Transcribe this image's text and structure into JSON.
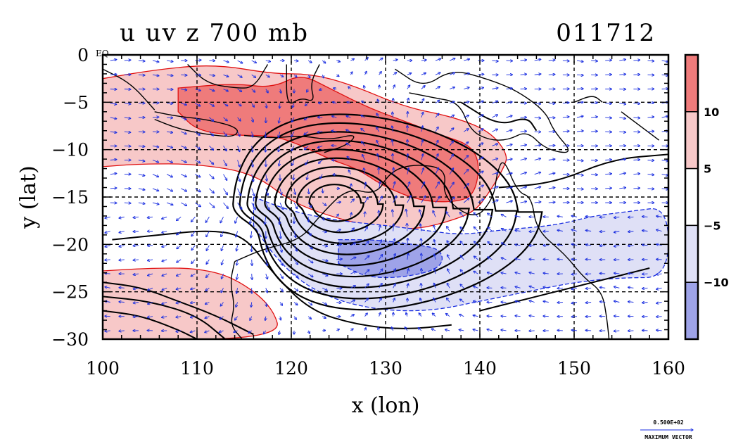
{
  "header": {
    "title": "u uv z 700 mb",
    "timestamp": "011712"
  },
  "footer": {
    "ref_vector_value": "0.500E+02",
    "ref_vector_label": "MAXIMUM VECTOR"
  },
  "colors": {
    "positive_light": "#f7c8c8",
    "positive_dark": "#ef7b7b",
    "negative_light": "#dfe0f6",
    "negative_dark": "#9ea3e8",
    "vector": "#1a2ee0",
    "positive_contour": "#e01010",
    "negative_contour": "#1a2ee0",
    "geopotential_contour": "#000000"
  },
  "chart_data": {
    "type": "heatmap",
    "title": "u uv z 700 mb",
    "time_label": "011712",
    "xlabel": "x (lon)",
    "ylabel": "y (lat)",
    "xlim": [
      100,
      160
    ],
    "ylim": [
      -30,
      0
    ],
    "x_ticks": [
      100,
      110,
      120,
      130,
      140,
      150,
      160
    ],
    "x_tick_labels": [
      "100",
      "110",
      "120",
      "130",
      "140",
      "150",
      "160"
    ],
    "y_ticks": [
      0,
      -5,
      -10,
      -15,
      -20,
      -25,
      -30
    ],
    "y_tick_labels": [
      "0",
      "−5",
      "−10",
      "−15",
      "−20",
      "−25",
      "−30"
    ],
    "y_top_tick_suffix": "EQ",
    "grid_lon": [
      110,
      120,
      130,
      140,
      150
    ],
    "grid_lat": [
      -5,
      -10,
      -15,
      -20,
      -25
    ],
    "grid": true,
    "colorbar": {
      "levels": [
        -10,
        -5,
        5,
        10
      ],
      "tick_labels": [
        "−10",
        "−5",
        "5",
        "10"
      ],
      "bins": [
        {
          "range": "< -10",
          "color": "#9ea3e8"
        },
        {
          "range": "-10 to -5",
          "color": "#dfe0f6"
        },
        {
          "range": "-5 to 5",
          "color": "#ffffff"
        },
        {
          "range": "5 to 10",
          "color": "#f7c8c8"
        },
        {
          "range": "> 10",
          "color": "#ef7b7b"
        }
      ]
    },
    "features": [
      {
        "name": "positive-u-band-north",
        "sign": "positive",
        "region": "lon 100-143, lat -2 to -19"
      },
      {
        "name": "positive-u-core",
        "sign": "strong positive",
        "region": "lon 121-139, lat -7 to -17"
      },
      {
        "name": "positive-u-southwest",
        "sign": "positive",
        "region": "lon 100-119, lat -23 to -30"
      },
      {
        "name": "negative-u-band",
        "sign": "negative",
        "region": "lon 116-160, lat -14 to -27"
      },
      {
        "name": "negative-u-core",
        "sign": "strong negative",
        "region": "lon 126-135, lat -19 to -24"
      },
      {
        "name": "cyclonic-low",
        "sign": "geopotential minimum",
        "center_lon": 124.5,
        "center_lat": -15.5
      }
    ],
    "reference_vector": {
      "value": "0.500E+02",
      "label": "MAXIMUM VECTOR"
    }
  }
}
